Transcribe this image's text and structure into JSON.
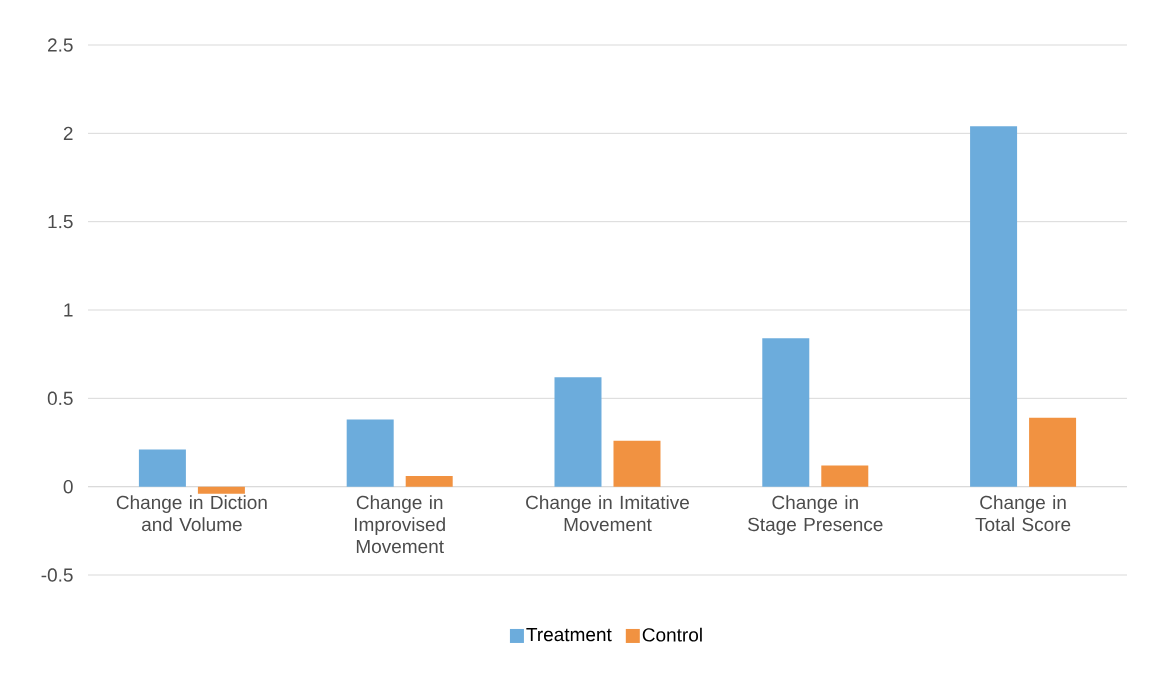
{
  "chart_data": {
    "type": "bar",
    "categories": [
      "Change in Diction and Volume",
      "Change in Improvised Movement",
      "Change in Imitative Movement",
      "Change in Stage Presence",
      "Change in Total Score"
    ],
    "series": [
      {
        "name": "Treatment",
        "color": "#6cacdc",
        "values": [
          0.21,
          0.38,
          0.62,
          0.84,
          2.04
        ]
      },
      {
        "name": "Control",
        "color": "#f19241",
        "values": [
          -0.04,
          0.06,
          0.26,
          0.12,
          0.39
        ]
      }
    ],
    "ylim": [
      -0.5,
      2.5
    ],
    "yticks": [
      -0.5,
      0,
      0.5,
      1,
      1.5,
      2,
      2.5
    ],
    "grid": "y",
    "legend": "bottom"
  }
}
